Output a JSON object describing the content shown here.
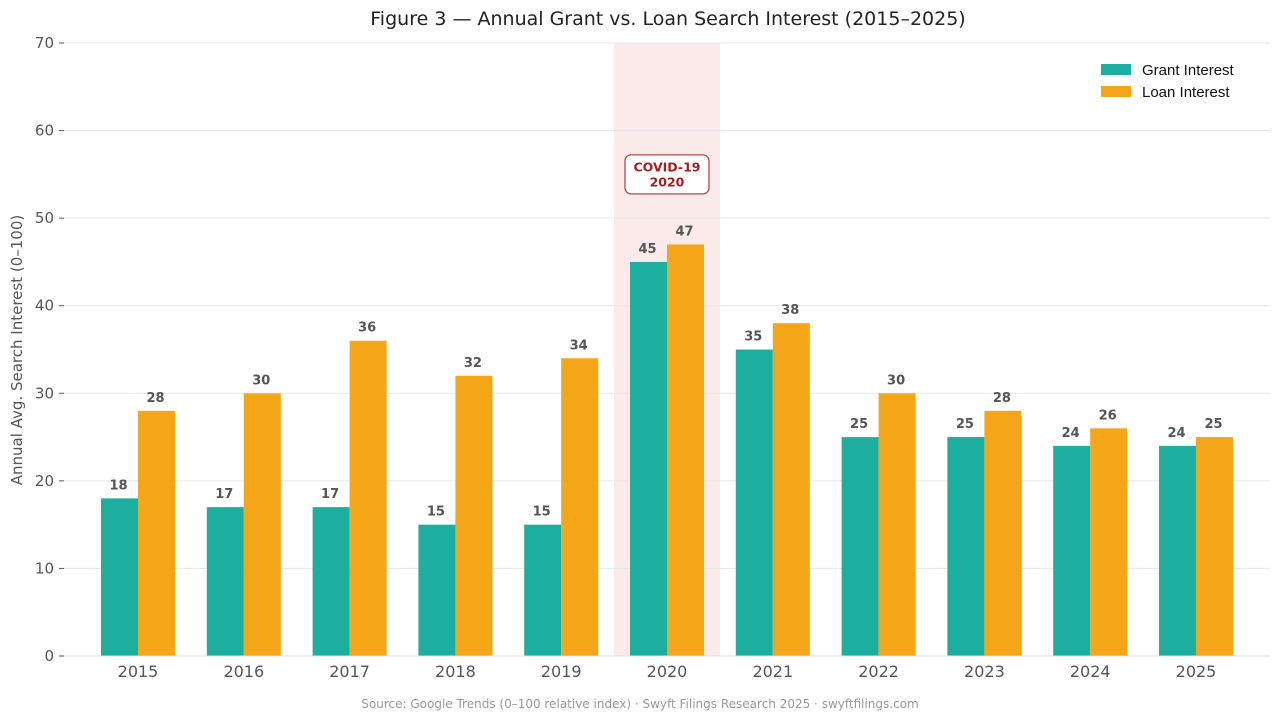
{
  "chart_data": {
    "type": "bar",
    "title": "Figure 3 — Annual Grant vs. Loan Search Interest (2015–2025)",
    "xlabel": "",
    "ylabel": "Annual Avg. Search Interest (0–100)",
    "ylim": [
      0,
      70
    ],
    "yticks": [
      0,
      10,
      20,
      30,
      40,
      50,
      60,
      70
    ],
    "grid": true,
    "legend_position": "top-right",
    "categories": [
      "2015",
      "2016",
      "2017",
      "2018",
      "2019",
      "2020",
      "2021",
      "2022",
      "2023",
      "2024",
      "2025"
    ],
    "series": [
      {
        "name": "Grant Interest",
        "color": "#1cae9e",
        "values": [
          18,
          17,
          17,
          15,
          15,
          45,
          35,
          25,
          25,
          24,
          24
        ]
      },
      {
        "name": "Loan Interest",
        "color": "#f4a518",
        "values": [
          28,
          30,
          36,
          32,
          34,
          47,
          38,
          30,
          28,
          26,
          25
        ]
      }
    ],
    "highlight": {
      "category": "2020",
      "color": "#fbeaea",
      "label_line1": "COVID-19",
      "label_line2": "2020",
      "label_color": "#a31f1f",
      "label_y": 55
    },
    "source": "Source: Google Trends (0–100 relative index) · Swyft Filings Research 2025 · swyftfilings.com"
  }
}
